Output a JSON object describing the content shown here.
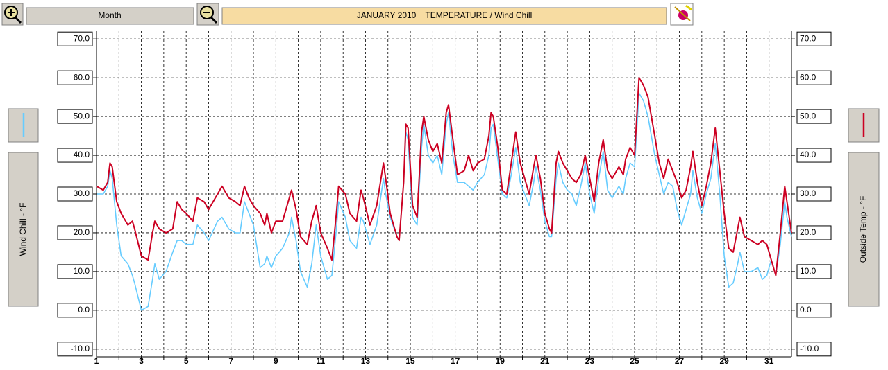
{
  "controls": {
    "period": "Month"
  },
  "chart_data": {
    "type": "line",
    "title": "JANUARY 2010    TEMPERATURE / Wind Chill",
    "x": [
      1.0,
      1.3,
      1.5,
      1.6,
      1.7,
      1.9,
      2.1,
      2.4,
      2.6,
      2.7,
      3.0,
      3.3,
      3.5,
      3.6,
      3.8,
      4.1,
      4.4,
      4.6,
      4.8,
      5.0,
      5.3,
      5.5,
      5.8,
      6.0,
      6.4,
      6.6,
      6.9,
      7.2,
      7.4,
      7.6,
      7.8,
      8.0,
      8.3,
      8.5,
      8.6,
      8.8,
      9.0,
      9.3,
      9.6,
      9.7,
      9.9,
      10.1,
      10.4,
      10.6,
      10.8,
      11.0,
      11.3,
      11.5,
      11.7,
      11.8,
      12.1,
      12.3,
      12.6,
      12.8,
      12.9,
      13.2,
      13.5,
      13.8,
      13.9,
      14.1,
      14.4,
      14.5,
      14.7,
      14.8,
      14.9,
      15.1,
      15.3,
      15.5,
      15.6,
      15.8,
      16.0,
      16.2,
      16.4,
      16.6,
      16.7,
      16.9,
      17.1,
      17.4,
      17.6,
      17.8,
      18.0,
      18.3,
      18.5,
      18.6,
      18.7,
      18.9,
      19.1,
      19.3,
      19.5,
      19.7,
      19.9,
      20.1,
      20.3,
      20.5,
      20.6,
      20.8,
      21.0,
      21.2,
      21.3,
      21.5,
      21.6,
      21.8,
      22.0,
      22.2,
      22.4,
      22.6,
      22.8,
      23.0,
      23.2,
      23.4,
      23.6,
      23.8,
      24.0,
      24.3,
      24.5,
      24.6,
      24.8,
      25.0,
      25.2,
      25.4,
      25.6,
      25.9,
      26.1,
      26.3,
      26.5,
      26.7,
      26.9,
      27.1,
      27.3,
      27.5,
      27.6,
      27.8,
      28.0,
      28.2,
      28.4,
      28.6,
      28.8,
      29.0,
      29.2,
      29.4,
      29.6,
      29.7,
      29.9,
      30.2,
      30.5,
      30.7,
      30.9,
      31.1,
      31.3,
      31.5,
      31.7,
      31.8,
      32.0
    ],
    "series": [
      {
        "name": "Wind Chill - °F",
        "color": "#66ccff",
        "axis": "y",
        "values": [
          30,
          30,
          32,
          36,
          34,
          22,
          14,
          12,
          9,
          7,
          0,
          1,
          8,
          12,
          8,
          10,
          15,
          18,
          18,
          17,
          17,
          22,
          20,
          18,
          23,
          24,
          21,
          20,
          20,
          28,
          25,
          22,
          11,
          12,
          14,
          11,
          14,
          16,
          20,
          24,
          18,
          10,
          6,
          12,
          22,
          14,
          8,
          9,
          21,
          28,
          24,
          18,
          16,
          24,
          23,
          17,
          22,
          34,
          30,
          24,
          19,
          18,
          33,
          46,
          44,
          24,
          22,
          42,
          48,
          40,
          38,
          40,
          35,
          48,
          51,
          40,
          33,
          33,
          32,
          31,
          33,
          35,
          40,
          47,
          48,
          39,
          30,
          29,
          35,
          42,
          33,
          30,
          27,
          33,
          37,
          31,
          23,
          19,
          19,
          34,
          38,
          33,
          31,
          30,
          27,
          32,
          38,
          30,
          25,
          34,
          41,
          31,
          29,
          32,
          30,
          34,
          38,
          37,
          56,
          54,
          50,
          40,
          35,
          30,
          33,
          32,
          26,
          22,
          26,
          30,
          36,
          29,
          25,
          30,
          34,
          43,
          30,
          14,
          6,
          7,
          12,
          15,
          10,
          10,
          11,
          8,
          9,
          13,
          9,
          17,
          28,
          24,
          19
        ]
      },
      {
        "name": "Outside Temp - °F",
        "color": "#cc0022",
        "axis": "y2",
        "values": [
          32,
          31,
          33,
          38,
          37,
          28,
          25,
          22,
          23,
          21,
          14,
          13,
          20,
          23,
          21,
          20,
          21,
          28,
          26,
          25,
          23,
          29,
          28,
          26,
          30,
          32,
          29,
          28,
          27,
          32,
          29,
          27,
          25,
          22,
          25,
          20,
          23,
          23,
          29,
          31,
          26,
          19,
          17,
          23,
          27,
          20,
          16,
          13,
          25,
          32,
          30,
          25,
          23,
          31,
          29,
          22,
          27,
          38,
          34,
          25,
          19,
          18,
          33,
          48,
          47,
          27,
          24,
          46,
          50,
          44,
          41,
          43,
          38,
          51,
          53,
          44,
          35,
          36,
          40,
          36,
          38,
          39,
          45,
          51,
          50,
          42,
          31,
          30,
          38,
          46,
          38,
          34,
          30,
          37,
          40,
          34,
          25,
          21,
          20,
          38,
          41,
          38,
          36,
          34,
          33,
          35,
          40,
          34,
          28,
          38,
          44,
          36,
          34,
          37,
          35,
          39,
          42,
          40,
          60,
          58,
          55,
          45,
          38,
          34,
          39,
          36,
          33,
          29,
          31,
          37,
          41,
          33,
          27,
          32,
          38,
          47,
          36,
          25,
          16,
          15,
          21,
          24,
          19,
          18,
          17,
          18,
          17,
          13,
          9,
          20,
          32,
          28,
          20
        ]
      }
    ],
    "xlim": [
      1,
      32
    ],
    "xticks": [
      1,
      3,
      5,
      7,
      9,
      11,
      13,
      15,
      17,
      19,
      21,
      23,
      25,
      27,
      29,
      31
    ],
    "minor_xticks": [
      2,
      4,
      6,
      8,
      10,
      12,
      14,
      16,
      18,
      20,
      22,
      24,
      26,
      28,
      30
    ],
    "ylim": [
      -12,
      72
    ],
    "yticks": [
      {
        "value": -10,
        "label": "-10.0"
      },
      {
        "value": 0,
        "label": "0.0"
      },
      {
        "value": 10,
        "label": "10.0"
      },
      {
        "value": 20,
        "label": "20.0"
      },
      {
        "value": 30,
        "label": "30.0"
      },
      {
        "value": 40,
        "label": "40.0"
      },
      {
        "value": 50,
        "label": "50.0"
      },
      {
        "value": 60,
        "label": "60.0"
      },
      {
        "value": 70,
        "label": "70.0"
      }
    ],
    "y2lim": [
      -12,
      72
    ],
    "y2ticks": [
      {
        "value": -10,
        "label": "-10.0"
      },
      {
        "value": 0,
        "label": "0.0"
      },
      {
        "value": 10,
        "label": "10.0"
      },
      {
        "value": 20,
        "label": "20.0"
      },
      {
        "value": 30,
        "label": "30.0"
      },
      {
        "value": 40,
        "label": "40.0"
      },
      {
        "value": 50,
        "label": "50.0"
      },
      {
        "value": 60,
        "label": "60.0"
      },
      {
        "value": 70,
        "label": "70.0"
      }
    ],
    "grid": true
  }
}
